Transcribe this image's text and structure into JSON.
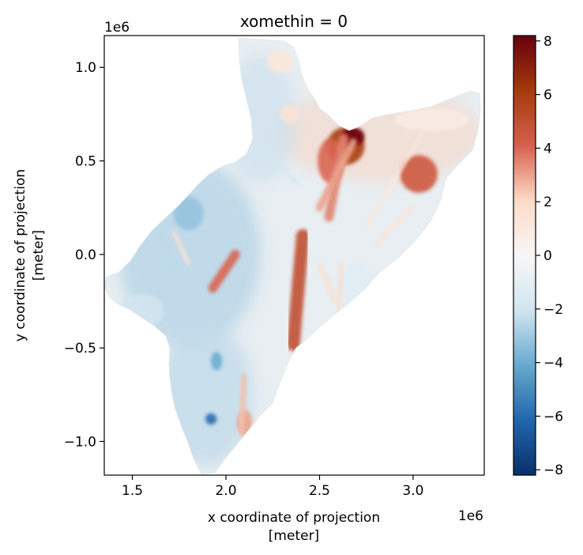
{
  "chart_data": {
    "type": "heatmap",
    "title": "xomethin = 0",
    "xlabel_line1": "x coordinate of projection",
    "xlabel_line2": "[meter]",
    "ylabel_line1": "y coordinate of projection",
    "ylabel_line2": "[meter]",
    "x_offset_label": "1e6",
    "y_offset_label": "1e6",
    "xlim": [
      1.35,
      3.38
    ],
    "ylim": [
      -1.18,
      1.17
    ],
    "x_ticks": [
      {
        "value": 1.5,
        "label": "1.5"
      },
      {
        "value": 2.0,
        "label": "2.0"
      },
      {
        "value": 2.5,
        "label": "2.5"
      },
      {
        "value": 3.0,
        "label": "3.0"
      }
    ],
    "y_ticks": [
      {
        "value": 1.0,
        "label": "1.0"
      },
      {
        "value": 0.5,
        "label": "0.5"
      },
      {
        "value": 0.0,
        "label": "0.0"
      },
      {
        "value": -0.5,
        "label": "−0.5"
      },
      {
        "value": -1.0,
        "label": "−1.0"
      }
    ],
    "colorbar": {
      "range": [
        -8.2,
        8.2
      ],
      "colormap_stops": [
        "#08306b",
        "#2166ac",
        "#67a9cf",
        "#d1e5f0",
        "#f7f7f7",
        "#fddbc7",
        "#d6604d",
        "#a53a0c",
        "#67000d"
      ],
      "ticks": [
        {
          "value": 8,
          "label": "8"
        },
        {
          "value": 6,
          "label": "6"
        },
        {
          "value": 4,
          "label": "4"
        },
        {
          "value": 2,
          "label": "2"
        },
        {
          "value": 0,
          "label": "0"
        },
        {
          "value": -2,
          "label": "−2"
        },
        {
          "value": -4,
          "label": "−4"
        },
        {
          "value": -6,
          "label": "−6"
        },
        {
          "value": -8,
          "label": "−8"
        }
      ]
    },
    "features": [
      {
        "kind": "blob",
        "x": 3.03,
        "y": 0.43,
        "rx": 0.1,
        "ry": 0.1,
        "value": 4.5
      },
      {
        "kind": "blob",
        "x": 2.64,
        "y": 0.58,
        "rx": 0.1,
        "ry": 0.1,
        "value": 6.0
      },
      {
        "kind": "blob",
        "x": 2.68,
        "y": 0.63,
        "rx": 0.06,
        "ry": 0.05,
        "value": 8.0
      },
      {
        "kind": "blob",
        "x": 2.56,
        "y": 0.5,
        "rx": 0.07,
        "ry": 0.12,
        "value": 4.0
      },
      {
        "kind": "blob",
        "x": 2.34,
        "y": 0.75,
        "rx": 0.05,
        "ry": 0.05,
        "value": 1.5
      },
      {
        "kind": "blob",
        "x": 2.29,
        "y": 1.03,
        "rx": 0.07,
        "ry": 0.06,
        "value": 1.2
      },
      {
        "kind": "blob",
        "x": 2.1,
        "y": -0.9,
        "rx": 0.04,
        "ry": 0.07,
        "value": 3.0
      },
      {
        "kind": "blob",
        "x": 1.8,
        "y": 0.22,
        "rx": 0.08,
        "ry": 0.09,
        "value": -3.2
      },
      {
        "kind": "blob",
        "x": 1.92,
        "y": -0.88,
        "rx": 0.03,
        "ry": 0.03,
        "value": -6.0
      },
      {
        "kind": "blob",
        "x": 1.95,
        "y": -0.57,
        "rx": 0.03,
        "ry": 0.05,
        "value": -4.0
      },
      {
        "kind": "blob",
        "x": 1.55,
        "y": -0.3,
        "rx": 0.12,
        "ry": 0.09,
        "value": -2.0
      },
      {
        "kind": "blob",
        "x": 3.1,
        "y": 0.72,
        "rx": 0.2,
        "ry": 0.06,
        "value": 0.8
      },
      {
        "kind": "blob",
        "x": 2.7,
        "y": -0.2,
        "rx": 0.1,
        "ry": 0.15,
        "value": -1.2
      },
      {
        "kind": "stripe",
        "x1": 2.41,
        "y1": 0.1,
        "x2": 2.36,
        "y2": -0.48,
        "width": 0.07,
        "value": 5.0
      },
      {
        "kind": "stripe",
        "x1": 2.05,
        "y1": 0.0,
        "x2": 1.93,
        "y2": -0.18,
        "width": 0.05,
        "value": 4.0
      },
      {
        "kind": "stripe",
        "x1": 2.1,
        "y1": -0.65,
        "x2": 2.08,
        "y2": -0.95,
        "width": 0.03,
        "value": 2.5
      },
      {
        "kind": "stripe",
        "x1": 2.63,
        "y1": 0.62,
        "x2": 2.55,
        "y2": 0.2,
        "width": 0.05,
        "value": 3.5
      },
      {
        "kind": "stripe",
        "x1": 2.68,
        "y1": 0.6,
        "x2": 2.5,
        "y2": 0.25,
        "width": 0.04,
        "value": 3.0
      },
      {
        "kind": "stripe",
        "x1": 1.72,
        "y1": 0.12,
        "x2": 1.8,
        "y2": -0.05,
        "width": 0.02,
        "value": 1.5
      },
      {
        "kind": "stripe",
        "x1": 2.62,
        "y1": -0.05,
        "x2": 2.6,
        "y2": -0.3,
        "width": 0.02,
        "value": 2.0
      },
      {
        "kind": "stripe",
        "x1": 2.5,
        "y1": -0.05,
        "x2": 2.58,
        "y2": -0.25,
        "width": 0.02,
        "value": 1.8
      },
      {
        "kind": "stripe",
        "x1": 3.05,
        "y1": 0.65,
        "x2": 2.75,
        "y2": 0.15,
        "width": 0.02,
        "value": 1.2
      },
      {
        "kind": "stripe",
        "x1": 3.0,
        "y1": 0.25,
        "x2": 2.8,
        "y2": 0.05,
        "width": 0.02,
        "value": 1.5
      },
      {
        "kind": "stripe",
        "x1": 1.65,
        "y1": 0.1,
        "x2": 1.72,
        "y2": -0.1,
        "width": 0.02,
        "value": -2.5
      },
      {
        "kind": "stripe",
        "x1": 2.2,
        "y1": 0.55,
        "x2": 2.38,
        "y2": 0.38,
        "width": 0.02,
        "value": -1.8
      }
    ]
  }
}
